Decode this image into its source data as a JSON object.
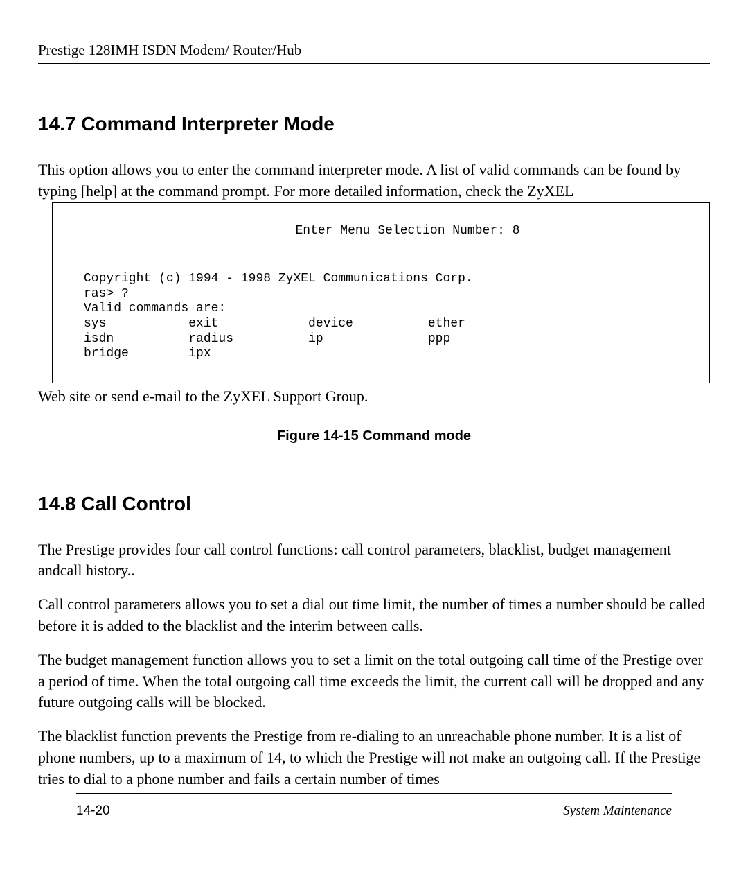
{
  "header": {
    "product_title": "Prestige 128IMH ISDN Modem/ Router/Hub"
  },
  "section_147": {
    "heading": "14.7  Command Interpreter Mode",
    "para_intro": "This option allows you to enter the command interpreter mode. A list of valid commands can be found by typing [help] at the command prompt. For more detailed information, check the ZyXEL",
    "para_after_box": "Web site or send e-mail to the ZyXEL Support Group."
  },
  "terminal": {
    "menu_line": "Enter Menu Selection Number: 8",
    "content": "Copyright (c) 1994 - 1998 ZyXEL Communications Corp.\nras> ?\nValid commands are:\nsys           exit            device          ether\nisdn          radius          ip              ppp\nbridge        ipx"
  },
  "figure_caption": "Figure 14-15 Command mode",
  "section_148": {
    "heading": "14.8  Call Control",
    "para1": "The Prestige provides four call control functions: call control parameters, blacklist, budget management andcall history..",
    "para2": "Call control parameters allows you to set a dial out time limit, the number of times a number should be called before it is added to the blacklist and the interim between calls.",
    "para3": "The budget management function allows you to set a limit on the total outgoing call time of the Prestige over a period of time. When the total outgoing call time exceeds the limit, the current call will be dropped and any future outgoing calls will be blocked.",
    "para4": "The blacklist function prevents the Prestige from re-dialing to an unreachable phone number. It is a list of phone numbers, up to a maximum of 14, to which the Prestige will not make an outgoing call. If the Prestige tries to dial to a phone number and fails a certain number of times"
  },
  "footer": {
    "page_number": "14-20",
    "section_name": "System Maintenance"
  }
}
